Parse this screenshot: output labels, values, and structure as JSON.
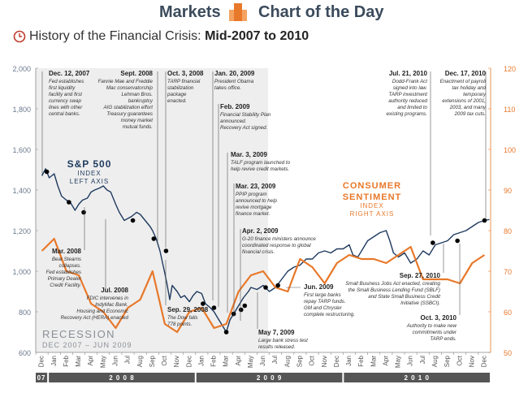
{
  "header": {
    "markets": "Markets",
    "chart_of_day": "Chart of the Day"
  },
  "subtitle": {
    "prefix": "History of the Financial Crisis: ",
    "range": "Mid-2007 to 2010"
  },
  "colors": {
    "sp500": "#1f3a5f",
    "sentiment": "#e8782a",
    "recession": "#d9d9d9",
    "annotation_line": "#555555",
    "year_bar": "#555555"
  },
  "chart_data": {
    "type": "line",
    "title": "History of the Financial Crisis: Mid-2007 to 2010",
    "left_axis": {
      "label": "S&P 500 Index (left axis)",
      "ylim": [
        600,
        2000
      ],
      "ticks": [
        "2,000",
        "1,800",
        "1,600",
        "1,400",
        "1,200",
        "1,000",
        "800",
        "600"
      ],
      "tick_values": [
        2000,
        1800,
        1600,
        1400,
        1200,
        1000,
        800,
        600
      ]
    },
    "right_axis": {
      "label": "Consumer Sentiment Index (right axis)",
      "ylim": [
        50,
        120
      ],
      "ticks": [
        "120",
        "110",
        "100",
        "90",
        "80",
        "70",
        "60",
        "50"
      ],
      "tick_values": [
        120,
        110,
        100,
        90,
        80,
        70,
        60,
        50
      ]
    },
    "x_months": [
      "Dec",
      "Jan",
      "Feb",
      "Mar",
      "Apr",
      "May",
      "Jun",
      "Jul",
      "Aug",
      "Sep",
      "Oct",
      "Nov",
      "Dec",
      "Jan",
      "Feb",
      "Mar",
      "Apr",
      "May",
      "Jun",
      "Jul",
      "Aug",
      "Sep",
      "Oct",
      "Nov",
      "Dec",
      "Jan",
      "Feb",
      "Mar",
      "Apr",
      "May",
      "Jun",
      "Jul",
      "Aug",
      "Sep",
      "Oct",
      "Nov",
      "Dec"
    ],
    "years": [
      {
        "label": "07",
        "start": 0,
        "end": 1
      },
      {
        "label": "2 0 0 8",
        "start": 1,
        "end": 13
      },
      {
        "label": "2 0 0 9",
        "start": 13,
        "end": 25
      },
      {
        "label": "2 0 1 0",
        "start": 25,
        "end": 37
      }
    ],
    "recession": {
      "start": 0,
      "end": 18.9,
      "label": "RECESSION",
      "sublabel": "DEC 2007 – JUN 2009"
    },
    "series": [
      {
        "name": "S&P 500",
        "axis": "left",
        "label_lines": [
          "S&P 500",
          "INDEX",
          "LEFT AXIS"
        ],
        "points": [
          [
            0,
            1470
          ],
          [
            0.3,
            1505
          ],
          [
            0.6,
            1460
          ],
          [
            1,
            1480
          ],
          [
            1.3,
            1420
          ],
          [
            1.6,
            1370
          ],
          [
            2,
            1350
          ],
          [
            2.3,
            1340
          ],
          [
            2.7,
            1300
          ],
          [
            3,
            1330
          ],
          [
            3.3,
            1350
          ],
          [
            3.7,
            1360
          ],
          [
            4,
            1390
          ],
          [
            4.3,
            1400
          ],
          [
            4.7,
            1410
          ],
          [
            5,
            1420
          ],
          [
            5.3,
            1400
          ],
          [
            5.6,
            1390
          ],
          [
            6,
            1330
          ],
          [
            6.3,
            1290
          ],
          [
            6.7,
            1250
          ],
          [
            7,
            1260
          ],
          [
            7.3,
            1270
          ],
          [
            7.7,
            1290
          ],
          [
            8,
            1280
          ],
          [
            8.4,
            1250
          ],
          [
            8.8,
            1220
          ],
          [
            9,
            1200
          ],
          [
            9.3,
            1160
          ],
          [
            9.6,
            1100
          ],
          [
            10,
            990
          ],
          [
            10.2,
            930
          ],
          [
            10.4,
            860
          ],
          [
            10.6,
            930
          ],
          [
            11,
            900
          ],
          [
            11.3,
            870
          ],
          [
            11.6,
            880
          ],
          [
            12,
            850
          ],
          [
            12.3,
            880
          ],
          [
            12.6,
            900
          ],
          [
            13,
            890
          ],
          [
            13.3,
            840
          ],
          [
            13.7,
            820
          ],
          [
            14,
            800
          ],
          [
            14.4,
            760
          ],
          [
            14.8,
            720
          ],
          [
            15,
            700
          ],
          [
            15.3,
            760
          ],
          [
            15.7,
            800
          ],
          [
            16,
            830
          ],
          [
            16.4,
            870
          ],
          [
            16.8,
            900
          ],
          [
            17,
            920
          ],
          [
            17.5,
            910
          ],
          [
            18,
            930
          ],
          [
            18.5,
            900
          ],
          [
            19,
            920
          ],
          [
            19.5,
            960
          ],
          [
            20,
            1000
          ],
          [
            20.5,
            1020
          ],
          [
            21,
            1030
          ],
          [
            21.5,
            1060
          ],
          [
            22,
            1060
          ],
          [
            22.5,
            1090
          ],
          [
            23,
            1100
          ],
          [
            23.5,
            1090
          ],
          [
            24,
            1110
          ],
          [
            24.5,
            1110
          ],
          [
            25,
            1130
          ],
          [
            25.3,
            1080
          ],
          [
            25.7,
            1070
          ],
          [
            26,
            1100
          ],
          [
            26.5,
            1150
          ],
          [
            27,
            1170
          ],
          [
            27.5,
            1190
          ],
          [
            28,
            1200
          ],
          [
            28.3,
            1150
          ],
          [
            28.6,
            1090
          ],
          [
            29,
            1070
          ],
          [
            29.5,
            1090
          ],
          [
            30,
            1040
          ],
          [
            30.5,
            1060
          ],
          [
            31,
            1100
          ],
          [
            31.5,
            1080
          ],
          [
            32,
            1130
          ],
          [
            32.5,
            1140
          ],
          [
            33,
            1150
          ],
          [
            33.5,
            1180
          ],
          [
            34,
            1190
          ],
          [
            34.5,
            1200
          ],
          [
            35,
            1220
          ],
          [
            35.5,
            1240
          ],
          [
            36,
            1250
          ],
          [
            36.4,
            1255
          ]
        ]
      },
      {
        "name": "Consumer Sentiment",
        "axis": "right",
        "label_lines": [
          "CONSUMER",
          "SENTIMENT",
          "INDEX",
          "RIGHT AXIS"
        ],
        "points": [
          [
            0,
            75
          ],
          [
            1,
            78
          ],
          [
            2,
            70
          ],
          [
            3,
            69
          ],
          [
            4,
            62
          ],
          [
            5,
            60
          ],
          [
            6,
            56
          ],
          [
            7,
            61
          ],
          [
            8,
            63
          ],
          [
            9,
            70
          ],
          [
            10,
            57
          ],
          [
            11,
            55
          ],
          [
            12,
            60
          ],
          [
            13,
            61
          ],
          [
            14,
            56
          ],
          [
            15,
            57
          ],
          [
            16,
            65
          ],
          [
            17,
            69
          ],
          [
            18,
            70
          ],
          [
            19,
            66
          ],
          [
            20,
            65
          ],
          [
            21,
            73
          ],
          [
            22,
            71
          ],
          [
            23,
            67
          ],
          [
            24,
            72
          ],
          [
            25,
            74
          ],
          [
            26,
            73
          ],
          [
            27,
            73
          ],
          [
            28,
            72
          ],
          [
            29,
            74
          ],
          [
            30,
            76
          ],
          [
            31,
            68
          ],
          [
            32,
            68
          ],
          [
            33,
            68
          ],
          [
            34,
            67
          ],
          [
            35,
            72
          ],
          [
            36,
            74
          ]
        ]
      }
    ],
    "events": [
      {
        "title": "Dec. 12, 2007",
        "lines": [
          "Fed establishes",
          "first liquidity",
          "facility and first",
          "currency swap",
          "lines with other",
          "central banks."
        ]
      },
      {
        "title": "Mar. 2008",
        "lines": [
          "Bear Stearns",
          "collapses.",
          "Fed establishes",
          "Primary Dealer",
          "Credit Facility."
        ]
      },
      {
        "title": "Jul. 2008",
        "lines": [
          "FDIC intervenes in",
          "IndyMac Bank.",
          "Housing and Economic",
          "Recovery Act (HERA) enacted"
        ]
      },
      {
        "title": "Sept. 2008",
        "lines": [
          "Fannie Mae and Freddie",
          "Mac conservatorship",
          "Lehman Bros.",
          "bankruptcy",
          "AIG stabilization effort",
          "Treasury guarantees",
          "money market",
          "mutual funds."
        ]
      },
      {
        "title": "Oct. 3, 2008",
        "lines": [
          "TARP financial",
          "stabilization",
          "package",
          "enacted."
        ]
      },
      {
        "title": "Sep. 29, 2008",
        "lines": [
          "The Dow falls",
          "778 points."
        ]
      },
      {
        "title": "Jan. 20, 2009",
        "lines": [
          "President Obama",
          "takes office."
        ]
      },
      {
        "title": "Feb. 2009",
        "lines": [
          "Financial Stability Plan",
          "announced.",
          "Recovery Act signed."
        ]
      },
      {
        "title": "Mar. 3, 2009",
        "lines": [
          "TALF program launched to",
          "help revive credit markets."
        ]
      },
      {
        "title": "Mar. 23, 2009",
        "lines": [
          "PPIP program",
          "announced to help",
          "revive mortgage",
          "finance market."
        ]
      },
      {
        "title": "Apr. 2, 2009",
        "lines": [
          "G-20 finance ministers announce",
          "coordinated response to global",
          "financial crisis."
        ]
      },
      {
        "title": "May 7, 2009",
        "lines": [
          "Large bank stress test",
          "results released."
        ]
      },
      {
        "title": "Jun. 2009",
        "lines": [
          "First large banks",
          "repay TARP funds.",
          "GM and Chrysler",
          "complete restructuring."
        ]
      },
      {
        "title": "Jul. 21, 2010",
        "lines": [
          "Dodd-Frank Act",
          "signed into law.",
          "TARP investment",
          "authority reduced",
          "and limited to",
          "existing programs."
        ]
      },
      {
        "title": "Dec. 17, 2010",
        "lines": [
          "Enactment of payroll",
          "tax holiday and",
          "temporary",
          "extensions of 2001,",
          "2003, and many",
          "2009 tax cuts."
        ]
      },
      {
        "title": "Sep. 27, 2010",
        "lines": [
          "Small Business Jobs Act enacted, creating",
          "the Small Business Lending Fund (SBLF)",
          "and State Small Business Credit",
          "Initiative (SSBCI)."
        ]
      },
      {
        "title": "Oct. 3, 2010",
        "lines": [
          "Authority to make new",
          "commitments under",
          "TARP ends."
        ]
      }
    ],
    "markers": [
      {
        "x": 0.4,
        "y": 1490
      },
      {
        "x": 2.2,
        "y": 1340
      },
      {
        "x": 3.4,
        "y": 1290
      },
      {
        "x": 7.4,
        "y": 1250
      },
      {
        "x": 9.1,
        "y": 1160
      },
      {
        "x": 10.1,
        "y": 1100
      },
      {
        "x": 13.1,
        "y": 840
      },
      {
        "x": 14,
        "y": 820
      },
      {
        "x": 15,
        "y": 700
      },
      {
        "x": 15.6,
        "y": 790
      },
      {
        "x": 16.5,
        "y": 830
      },
      {
        "x": 16.2,
        "y": 810
      },
      {
        "x": 18.2,
        "y": 920
      },
      {
        "x": 19.2,
        "y": 930
      },
      {
        "x": 31.8,
        "y": 1140
      },
      {
        "x": 33.8,
        "y": 1150
      },
      {
        "x": 36,
        "y": 1250
      }
    ]
  }
}
